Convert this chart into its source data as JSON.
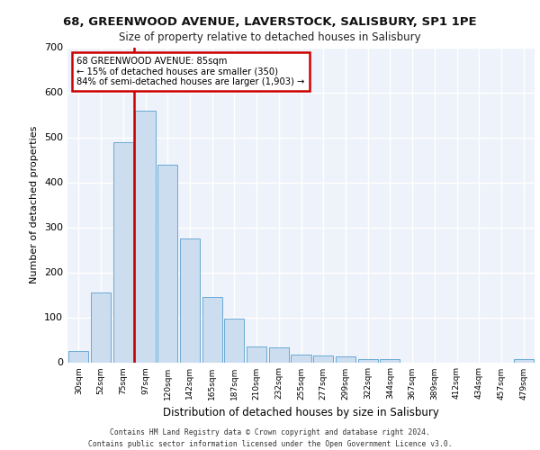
{
  "title_line1": "68, GREENWOOD AVENUE, LAVERSTOCK, SALISBURY, SP1 1PE",
  "title_line2": "Size of property relative to detached houses in Salisbury",
  "xlabel": "Distribution of detached houses by size in Salisbury",
  "ylabel": "Number of detached properties",
  "bar_color": "#ccddf0",
  "bar_edge_color": "#6aaad4",
  "all_categories": [
    "30sqm",
    "52sqm",
    "75sqm",
    "97sqm",
    "120sqm",
    "142sqm",
    "165sqm",
    "187sqm",
    "210sqm",
    "232sqm",
    "255sqm",
    "277sqm",
    "299sqm",
    "322sqm",
    "344sqm",
    "367sqm",
    "389sqm",
    "412sqm",
    "434sqm",
    "457sqm",
    "479sqm"
  ],
  "all_bar_values": [
    25,
    155,
    490,
    560,
    440,
    275,
    145,
    98,
    35,
    33,
    17,
    16,
    13,
    8,
    7,
    0,
    0,
    0,
    0,
    0,
    7
  ],
  "vline_color": "#cc0000",
  "annotation_text": "68 GREENWOOD AVENUE: 85sqm\n← 15% of detached houses are smaller (350)\n84% of semi-detached houses are larger (1,903) →",
  "annotation_box_color": "#cc0000",
  "ylim": [
    0,
    700
  ],
  "yticks": [
    0,
    100,
    200,
    300,
    400,
    500,
    600,
    700
  ],
  "footer_line1": "Contains HM Land Registry data © Crown copyright and database right 2024.",
  "footer_line2": "Contains public sector information licensed under the Open Government Licence v3.0.",
  "background_color": "#eef2fa",
  "grid_color": "#ffffff"
}
